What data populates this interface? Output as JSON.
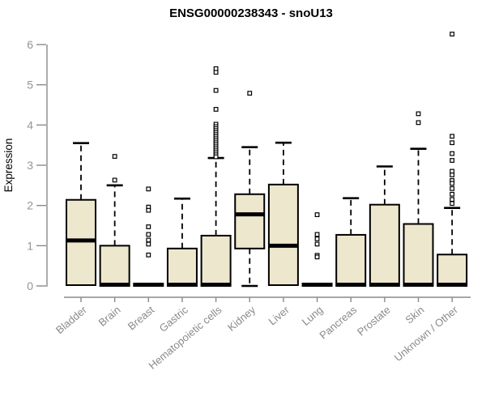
{
  "chart_data": {
    "type": "boxplot",
    "title": "ENSG00000238343 - snoU13",
    "ylabel": "Expression",
    "xlabel": "",
    "ylim": [
      0,
      6.3
    ],
    "yticks": [
      0,
      1,
      2,
      3,
      4,
      5,
      6
    ],
    "grid": false,
    "legend": "none",
    "colors": {
      "box_fill": "#EDE7CD",
      "box_stroke": "#000000",
      "median": "#000000",
      "whisker": "#000000",
      "axis": "#8a8a8a",
      "tick_label": "#949494",
      "category_label": "#8a8a8a",
      "title": "#000000",
      "background": "#ffffff"
    },
    "categories": [
      "Bladder",
      "Brain",
      "Breast",
      "Gastric",
      "Hematopoietic cells",
      "Kidney",
      "Liver",
      "Lung",
      "Pancreas",
      "Prostate",
      "Skin",
      "Unknown / Other"
    ],
    "boxes": [
      {
        "category": "Bladder",
        "low": 0.02,
        "q1": 0.02,
        "median": 1.13,
        "q3": 2.14,
        "high": 3.55,
        "outliers": []
      },
      {
        "category": "Brain",
        "low": 0.0,
        "q1": 0.0,
        "median": 0.03,
        "q3": 1.0,
        "high": 2.5,
        "outliers": [
          3.22,
          2.63
        ]
      },
      {
        "category": "Breast",
        "low": 0.0,
        "q1": 0.0,
        "median": 0.03,
        "q3": 0.06,
        "high": 0.06,
        "outliers": [
          2.41,
          1.96,
          1.88,
          1.47,
          1.28,
          1.14,
          1.04,
          0.77
        ]
      },
      {
        "category": "Gastric",
        "low": 0.0,
        "q1": 0.0,
        "median": 0.03,
        "q3": 0.93,
        "high": 2.17,
        "outliers": []
      },
      {
        "category": "Hematopoietic cells",
        "low": 0.0,
        "q1": 0.0,
        "median": 0.03,
        "q3": 1.25,
        "high": 3.18,
        "outliers": [
          5.4,
          5.31,
          4.86,
          4.39,
          4.02,
          3.96,
          3.91,
          3.86,
          3.81,
          3.76,
          3.71,
          3.66,
          3.61,
          3.56,
          3.51,
          3.46,
          3.41,
          3.36,
          3.31,
          3.26,
          3.21
        ]
      },
      {
        "category": "Kidney",
        "low": 0.0,
        "q1": 0.93,
        "median": 1.78,
        "q3": 2.28,
        "high": 3.45,
        "outliers": [
          4.79
        ]
      },
      {
        "category": "Liver",
        "low": 0.02,
        "q1": 0.02,
        "median": 1.0,
        "q3": 2.52,
        "high": 3.56,
        "outliers": []
      },
      {
        "category": "Lung",
        "low": 0.0,
        "q1": 0.0,
        "median": 0.03,
        "q3": 0.06,
        "high": 0.06,
        "outliers": [
          1.77,
          1.28,
          1.17,
          1.04,
          0.76,
          0.72
        ]
      },
      {
        "category": "Pancreas",
        "low": 0.0,
        "q1": 0.0,
        "median": 0.03,
        "q3": 1.27,
        "high": 2.18,
        "outliers": []
      },
      {
        "category": "Prostate",
        "low": 0.0,
        "q1": 0.0,
        "median": 0.03,
        "q3": 2.02,
        "high": 2.97,
        "outliers": []
      },
      {
        "category": "Skin",
        "low": 0.0,
        "q1": 0.0,
        "median": 0.03,
        "q3": 1.54,
        "high": 3.41,
        "outliers": [
          4.28,
          4.06
        ]
      },
      {
        "category": "Unknown / Other",
        "low": 0.0,
        "q1": 0.0,
        "median": 0.03,
        "q3": 0.78,
        "high": 1.94,
        "outliers": [
          6.26,
          3.72,
          3.56,
          3.29,
          3.12,
          2.85,
          2.76,
          2.62,
          2.55,
          2.42,
          2.28,
          2.15,
          2.05
        ]
      }
    ]
  }
}
